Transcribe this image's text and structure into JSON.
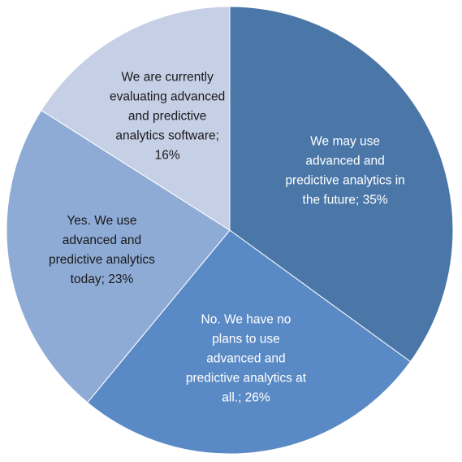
{
  "chart_data": {
    "type": "pie",
    "categories": [
      null,
      null,
      null,
      null
    ],
    "values": [
      35,
      26,
      23,
      16
    ],
    "value_labels": [
      "We may use advanced and predictive analytics in the future; 35%",
      "No. We have no plans to use advanced and predictive analytics at all.; 26%",
      "Yes. We use advanced and predictive analytics today; 23%",
      "We are currently evaluating advanced and predictive analytics software; 16%"
    ],
    "colors": [
      "#4a77a8",
      "#5a8ac5",
      "#8eabd6",
      "#c5cfe5"
    ],
    "label_colors": [
      "#ffffff",
      "#ffffff",
      "#1a1a1a",
      "#1a1a1a"
    ]
  }
}
